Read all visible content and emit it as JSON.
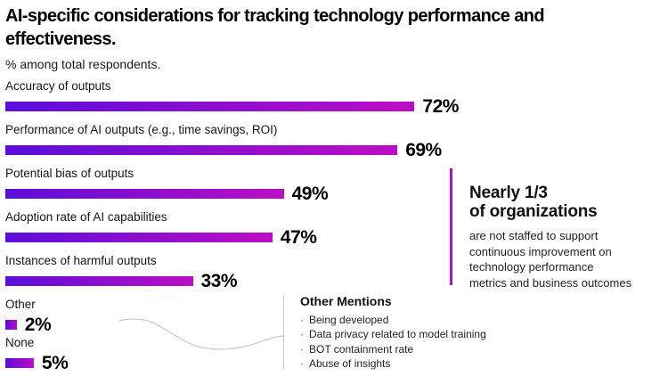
{
  "header": {
    "title_lines": [
      "AI-specific considerations for tracking technology performance and",
      "effectiveness."
    ],
    "subtitle": "% among total respondents."
  },
  "chart_data": {
    "type": "bar",
    "orientation": "horizontal",
    "title": "AI-specific considerations for tracking technology performance and effectiveness.",
    "subtitle": "% among total respondents.",
    "categories": [
      "Accuracy of outputs",
      "Performance of AI outputs (e.g., time savings, ROI)",
      "Potential bias of outputs",
      "Adoption rate of AI capabilities",
      "Instances of harmful outputs",
      "Other",
      "None"
    ],
    "values": [
      72,
      69,
      49,
      47,
      33,
      2,
      5
    ],
    "value_suffix": "%",
    "xlim": [
      0,
      100
    ],
    "grid": false,
    "legend": false,
    "bar_gradient": [
      "#5B0EDA",
      "#BC0EC4"
    ]
  },
  "callout": {
    "heading_lines": [
      "Nearly 1/3",
      "of organizations"
    ],
    "body_lines": [
      "are not staffed to support",
      "continuous improvement on",
      "technology performance",
      "metrics and business outcomes"
    ],
    "accent_color": "#A112E0"
  },
  "other_mentions": {
    "heading": "Other Mentions",
    "bullet_char": "·",
    "items": [
      "Being developed",
      "Data privacy related to model training",
      "BOT containment rate",
      "Abuse of insights"
    ]
  }
}
